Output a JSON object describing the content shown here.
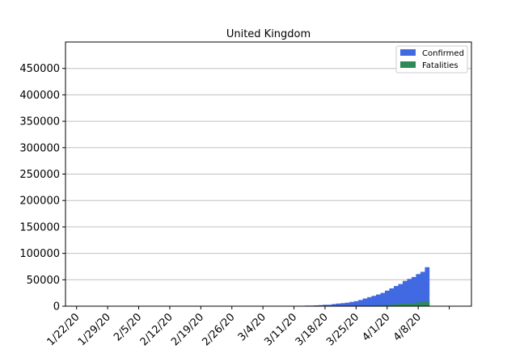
{
  "chart_data": {
    "type": "bar",
    "stacked": true,
    "title": "United Kingdom",
    "xlabel": "",
    "ylabel": "",
    "ylim": [
      0,
      500000
    ],
    "yticks": [
      0,
      50000,
      100000,
      150000,
      200000,
      250000,
      300000,
      350000,
      400000,
      450000
    ],
    "ytick_labels": [
      "0",
      "50000",
      "100000",
      "150000",
      "200000",
      "250000",
      "300000",
      "350000",
      "400000",
      "450000"
    ],
    "xtick_labels": [
      "1/22/20",
      "1/29/20",
      "2/5/20",
      "2/12/20",
      "2/19/20",
      "2/26/20",
      "3/4/20",
      "3/11/20",
      "3/18/20",
      "3/25/20",
      "4/1/20",
      "4/8/20"
    ],
    "grid": "y",
    "legend_position": "top-right",
    "colors": {
      "confirmed": "#4169e1",
      "fatalities": "#2e8b57",
      "grid": "#c0c0c0"
    },
    "dates": [
      "1/22/20",
      "1/23/20",
      "1/24/20",
      "1/25/20",
      "1/26/20",
      "1/27/20",
      "1/28/20",
      "1/29/20",
      "1/30/20",
      "1/31/20",
      "2/1/20",
      "2/2/20",
      "2/3/20",
      "2/4/20",
      "2/5/20",
      "2/6/20",
      "2/7/20",
      "2/8/20",
      "2/9/20",
      "2/10/20",
      "2/11/20",
      "2/12/20",
      "2/13/20",
      "2/14/20",
      "2/15/20",
      "2/16/20",
      "2/17/20",
      "2/18/20",
      "2/19/20",
      "2/20/20",
      "2/21/20",
      "2/22/20",
      "2/23/20",
      "2/24/20",
      "2/25/20",
      "2/26/20",
      "2/27/20",
      "2/28/20",
      "2/29/20",
      "3/1/20",
      "3/2/20",
      "3/3/20",
      "3/4/20",
      "3/5/20",
      "3/6/20",
      "3/7/20",
      "3/8/20",
      "3/9/20",
      "3/10/20",
      "3/11/20",
      "3/12/20",
      "3/13/20",
      "3/14/20",
      "3/15/20",
      "3/16/20",
      "3/17/20",
      "3/18/20",
      "3/19/20",
      "3/20/20",
      "3/21/20",
      "3/22/20",
      "3/23/20",
      "3/24/20",
      "3/25/20",
      "3/26/20",
      "3/27/20",
      "3/28/20",
      "3/29/20",
      "3/30/20",
      "3/31/20",
      "4/1/20",
      "4/2/20",
      "4/3/20",
      "4/4/20",
      "4/5/20",
      "4/6/20",
      "4/7/20",
      "4/8/20",
      "4/9/20",
      "4/10/20"
    ],
    "series": [
      {
        "name": "Confirmed",
        "values": [
          0,
          0,
          0,
          0,
          0,
          0,
          0,
          0,
          0,
          2,
          2,
          2,
          2,
          2,
          2,
          2,
          3,
          3,
          3,
          8,
          8,
          9,
          9,
          9,
          9,
          9,
          9,
          9,
          9,
          9,
          9,
          9,
          9,
          13,
          13,
          13,
          15,
          20,
          23,
          36,
          40,
          51,
          85,
          115,
          163,
          206,
          273,
          321,
          382,
          456,
          456,
          798,
          1140,
          1140,
          1543,
          1950,
          2626,
          2689,
          3983,
          5018,
          5683,
          6650,
          8077,
          9529,
          11658,
          14543,
          17089,
          19522,
          22141,
          25150,
          29474,
          33718,
          38168,
          41903,
          47806,
          51608,
          55242,
          60733,
          65077,
          73758
        ]
      },
      {
        "name": "Fatalities",
        "values": [
          0,
          0,
          0,
          0,
          0,
          0,
          0,
          0,
          0,
          0,
          0,
          0,
          0,
          0,
          0,
          0,
          0,
          0,
          0,
          0,
          0,
          0,
          0,
          0,
          0,
          0,
          0,
          0,
          0,
          0,
          0,
          0,
          0,
          0,
          0,
          0,
          0,
          0,
          0,
          0,
          0,
          0,
          0,
          1,
          2,
          2,
          3,
          4,
          6,
          8,
          8,
          8,
          21,
          21,
          56,
          56,
          72,
          138,
          178,
          234,
          282,
          336,
          423,
          466,
          580,
          761,
          1021,
          1231,
          1411,
          1793,
          2357,
          2926,
          3611,
          4320,
          4943,
          5385,
          6171,
          7111,
          7978,
          8958
        ]
      }
    ]
  }
}
